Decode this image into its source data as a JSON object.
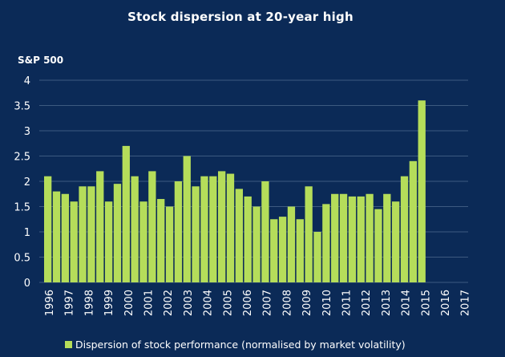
{
  "chart_data": {
    "type": "bar",
    "title": "Stock dispersion at 20-year high",
    "ylabel": "S&P 500",
    "xlabel": "",
    "ylim": [
      0,
      4
    ],
    "yticks": [
      "0",
      "0.5",
      "1",
      "1.5",
      "2",
      "2.5",
      "3",
      "3.5",
      "4"
    ],
    "grid": true,
    "legend_position": "bottom",
    "year_labels": [
      "1996",
      "1997",
      "1998",
      "1999",
      "2000",
      "2001",
      "2002",
      "2003",
      "2004",
      "2005",
      "2006",
      "2007",
      "2008",
      "2009",
      "2010",
      "2011",
      "2012",
      "2013",
      "2014",
      "2015",
      "2016",
      "2017"
    ],
    "series": [
      {
        "name": "Dispersion of stock performance (normalised by market volatility)",
        "color": "#b5dd5a",
        "values": [
          2.1,
          1.8,
          1.75,
          1.6,
          1.9,
          1.9,
          2.2,
          1.6,
          1.95,
          2.7,
          2.1,
          1.6,
          2.2,
          1.65,
          1.5,
          2.0,
          2.5,
          1.9,
          2.1,
          2.1,
          2.2,
          2.15,
          1.85,
          1.7,
          1.5,
          2.0,
          1.25,
          1.3,
          1.5,
          1.25,
          1.9,
          1.0,
          1.55,
          1.75,
          1.75,
          1.7,
          1.7,
          1.75,
          1.45,
          1.75,
          1.6,
          2.1,
          2.4,
          3.6
        ]
      }
    ]
  }
}
